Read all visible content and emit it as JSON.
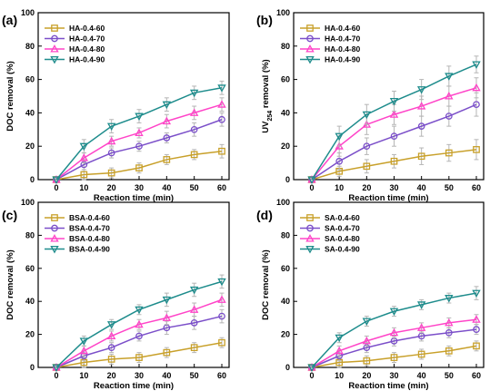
{
  "colors": {
    "HA": {
      "60": "#c8a02a",
      "70": "#7b4fc9",
      "80": "#ff44c8",
      "90": "#1e8c8c"
    },
    "error_bar": "#b5b5b5"
  },
  "chart_data": [
    {
      "type": "line",
      "panel_label": "(a)",
      "xlabel": "Reaction time (min)",
      "ylabel": "DOC removal (%)",
      "ylabel_sub": "",
      "ylabel_rest": "",
      "xlim": [
        0,
        60
      ],
      "ylim": [
        0,
        100
      ],
      "x_ticks": [
        0,
        10,
        20,
        30,
        40,
        50,
        60
      ],
      "y_ticks": [
        0,
        20,
        40,
        60,
        80,
        100
      ],
      "legend": "top-left",
      "x": [
        0,
        10,
        20,
        30,
        40,
        50,
        60
      ],
      "series": [
        {
          "name": "HA-0.4-60",
          "marker": "square",
          "color": "#c8a02a",
          "values": [
            0,
            3,
            4,
            7,
            12,
            15,
            17
          ],
          "errors": [
            1,
            3,
            3,
            3,
            3,
            3,
            4
          ]
        },
        {
          "name": "HA-0.4-70",
          "marker": "circle",
          "color": "#7b4fc9",
          "values": [
            0,
            9,
            16,
            20,
            25,
            30,
            36
          ],
          "errors": [
            1,
            3,
            3,
            3,
            3,
            4,
            4
          ]
        },
        {
          "name": "HA-0.4-80",
          "marker": "triangle-up",
          "color": "#ff44c8",
          "values": [
            0,
            13,
            23,
            28,
            35,
            40,
            45
          ],
          "errors": [
            1,
            3,
            3,
            3,
            4,
            4,
            4
          ]
        },
        {
          "name": "HA-0.4-90",
          "marker": "triangle-down",
          "color": "#1e8c8c",
          "values": [
            0,
            20,
            32,
            38,
            45,
            52,
            55
          ],
          "errors": [
            1,
            4,
            4,
            4,
            4,
            4,
            4
          ]
        }
      ]
    },
    {
      "type": "line",
      "panel_label": "(b)",
      "xlabel": "Reaction time (min)",
      "ylabel": "UV",
      "ylabel_sub": "254",
      "ylabel_rest": " removal (%)",
      "xlim": [
        0,
        60
      ],
      "ylim": [
        0,
        100
      ],
      "x_ticks": [
        0,
        10,
        20,
        30,
        40,
        50,
        60
      ],
      "y_ticks": [
        0,
        20,
        40,
        60,
        80,
        100
      ],
      "legend": "top-left",
      "x": [
        0,
        10,
        20,
        30,
        40,
        50,
        60
      ],
      "series": [
        {
          "name": "HA-0.4-60",
          "marker": "square",
          "color": "#c8a02a",
          "values": [
            0,
            5,
            8,
            11,
            14,
            16,
            18
          ],
          "errors": [
            1,
            3,
            4,
            4,
            5,
            5,
            6
          ]
        },
        {
          "name": "HA-0.4-70",
          "marker": "circle",
          "color": "#7b4fc9",
          "values": [
            0,
            11,
            20,
            26,
            32,
            38,
            45
          ],
          "errors": [
            1,
            5,
            5,
            6,
            6,
            6,
            7
          ]
        },
        {
          "name": "HA-0.4-80",
          "marker": "triangle-up",
          "color": "#ff44c8",
          "values": [
            0,
            20,
            33,
            39,
            44,
            50,
            55
          ],
          "errors": [
            1,
            6,
            6,
            6,
            6,
            6,
            6
          ]
        },
        {
          "name": "HA-0.4-90",
          "marker": "triangle-down",
          "color": "#1e8c8c",
          "values": [
            0,
            26,
            39,
            47,
            54,
            62,
            69
          ],
          "errors": [
            1,
            6,
            6,
            6,
            6,
            6,
            5
          ]
        }
      ]
    },
    {
      "type": "line",
      "panel_label": "(c)",
      "xlabel": "Reaction time (min)",
      "ylabel": "DOC removal (%)",
      "ylabel_sub": "",
      "ylabel_rest": "",
      "xlim": [
        0,
        60
      ],
      "ylim": [
        0,
        100
      ],
      "x_ticks": [
        0,
        10,
        20,
        30,
        40,
        50,
        60
      ],
      "y_ticks": [
        0,
        20,
        40,
        60,
        80,
        100
      ],
      "legend": "top-left",
      "x": [
        0,
        10,
        20,
        30,
        40,
        50,
        60
      ],
      "series": [
        {
          "name": "BSA-0.4-60",
          "marker": "square",
          "color": "#c8a02a",
          "values": [
            0,
            3,
            5,
            6,
            9,
            12,
            15
          ],
          "errors": [
            1,
            3,
            3,
            3,
            3,
            3,
            3
          ]
        },
        {
          "name": "BSA-0.4-70",
          "marker": "circle",
          "color": "#7b4fc9",
          "values": [
            0,
            7,
            12,
            19,
            24,
            27,
            31
          ],
          "errors": [
            1,
            3,
            3,
            3,
            4,
            4,
            4
          ]
        },
        {
          "name": "BSA-0.4-80",
          "marker": "triangle-up",
          "color": "#ff44c8",
          "values": [
            0,
            10,
            19,
            26,
            30,
            35,
            41
          ],
          "errors": [
            1,
            3,
            3,
            3,
            4,
            4,
            4
          ]
        },
        {
          "name": "BSA-0.4-90",
          "marker": "triangle-down",
          "color": "#1e8c8c",
          "values": [
            0,
            16,
            26,
            35,
            41,
            47,
            52
          ],
          "errors": [
            1,
            3,
            3,
            3,
            4,
            4,
            4
          ]
        }
      ]
    },
    {
      "type": "line",
      "panel_label": "(d)",
      "xlabel": "Reaction time (min)",
      "ylabel": "DOC removal (%)",
      "ylabel_sub": "",
      "ylabel_rest": "",
      "xlim": [
        0,
        60
      ],
      "ylim": [
        0,
        100
      ],
      "x_ticks": [
        0,
        10,
        20,
        30,
        40,
        50,
        60
      ],
      "y_ticks": [
        0,
        20,
        40,
        60,
        80,
        100
      ],
      "legend": "top-left",
      "x": [
        0,
        10,
        20,
        30,
        40,
        50,
        60
      ],
      "series": [
        {
          "name": "SA-0.4-60",
          "marker": "square",
          "color": "#c8a02a",
          "values": [
            0,
            3,
            4,
            6,
            8,
            10,
            13
          ],
          "errors": [
            1,
            3,
            3,
            3,
            3,
            3,
            3
          ]
        },
        {
          "name": "SA-0.4-70",
          "marker": "circle",
          "color": "#7b4fc9",
          "values": [
            0,
            7,
            12,
            16,
            19,
            21,
            23
          ],
          "errors": [
            1,
            3,
            3,
            3,
            3,
            3,
            3
          ]
        },
        {
          "name": "SA-0.4-80",
          "marker": "triangle-up",
          "color": "#ff44c8",
          "values": [
            0,
            10,
            16,
            21,
            24,
            27,
            29
          ],
          "errors": [
            1,
            3,
            3,
            3,
            3,
            3,
            3
          ]
        },
        {
          "name": "SA-0.4-90",
          "marker": "triangle-down",
          "color": "#1e8c8c",
          "values": [
            0,
            18,
            28,
            34,
            38,
            42,
            45
          ],
          "errors": [
            1,
            3,
            3,
            3,
            3,
            3,
            4
          ]
        }
      ]
    }
  ]
}
